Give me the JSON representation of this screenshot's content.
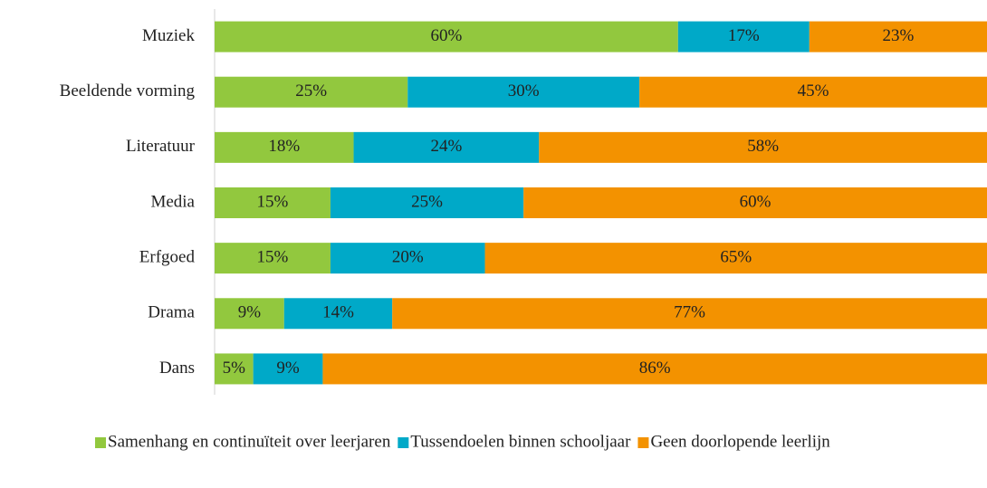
{
  "chart_data": {
    "type": "stacked-barh",
    "categories": [
      "Muziek",
      "Beeldende vorming",
      "Literatuur",
      "Media",
      "Erfgoed",
      "Drama",
      "Dans"
    ],
    "xlim": [
      0,
      100
    ],
    "legend": "bottom-left",
    "series": [
      {
        "name": "Samenhang en continuïteit over leerjaren",
        "color": "#92c83e",
        "values": [
          60,
          25,
          18,
          15,
          15,
          9,
          5
        ],
        "value_labels": [
          "60%",
          "25%",
          "18%",
          "15%",
          "15%",
          "9%",
          "5%"
        ]
      },
      {
        "name": "Tussendoelen binnen schooljaar",
        "color": "#00a9c8",
        "values": [
          17,
          30,
          24,
          25,
          20,
          14,
          9
        ],
        "value_labels": [
          "17%",
          "30%",
          "24%",
          "25%",
          "20%",
          "14%",
          "9%"
        ]
      },
      {
        "name": "Geen doorlopende leerlijn",
        "color": "#f39200",
        "values": [
          23,
          45,
          58,
          60,
          65,
          77,
          86
        ],
        "value_labels": [
          "23%",
          "45%",
          "58%",
          "60%",
          "65%",
          "77%",
          "86%"
        ]
      }
    ]
  }
}
